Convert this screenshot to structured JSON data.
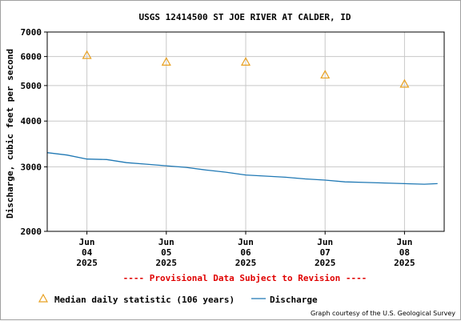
{
  "chart_data": {
    "type": "line",
    "title": "USGS 12414500 ST JOE RIVER AT CALDER, ID",
    "ylabel": "Discharge, cubic feet per second",
    "y_scale": "log",
    "ylim": [
      2000,
      7000
    ],
    "y_ticks": [
      "2000",
      "3000",
      "4000",
      "5000",
      "6000",
      "7000"
    ],
    "y_tick_values": [
      2000,
      3000,
      4000,
      5000,
      6000,
      7000
    ],
    "xlim": [
      "2025-06-03T12:00",
      "2025-06-08T12:00"
    ],
    "x_ticks": [
      {
        "date": "2025-06-04",
        "month": "Jun",
        "day": "04",
        "year": "2025"
      },
      {
        "date": "2025-06-05",
        "month": "Jun",
        "day": "05",
        "year": "2025"
      },
      {
        "date": "2025-06-06",
        "month": "Jun",
        "day": "06",
        "year": "2025"
      },
      {
        "date": "2025-06-07",
        "month": "Jun",
        "day": "07",
        "year": "2025"
      },
      {
        "date": "2025-06-08",
        "month": "Jun",
        "day": "08",
        "year": "2025"
      }
    ],
    "grid": true,
    "provisional_note": "---- Provisional Data Subject to Revision ----",
    "credit": "Graph courtesy of the U.S. Geological Survey",
    "series": [
      {
        "name": "Discharge",
        "kind": "line",
        "color": "#1f78b4",
        "points": [
          [
            "2025-06-03T12:00",
            3280
          ],
          [
            "2025-06-03T18:00",
            3230
          ],
          [
            "2025-06-04T00:00",
            3150
          ],
          [
            "2025-06-04T06:00",
            3140
          ],
          [
            "2025-06-04T12:00",
            3080
          ],
          [
            "2025-06-04T18:00",
            3050
          ],
          [
            "2025-06-05T00:00",
            3020
          ],
          [
            "2025-06-05T06:00",
            2990
          ],
          [
            "2025-06-05T12:00",
            2940
          ],
          [
            "2025-06-05T18:00",
            2900
          ],
          [
            "2025-06-06T00:00",
            2850
          ],
          [
            "2025-06-06T06:00",
            2830
          ],
          [
            "2025-06-06T12:00",
            2810
          ],
          [
            "2025-06-06T18:00",
            2780
          ],
          [
            "2025-06-07T00:00",
            2760
          ],
          [
            "2025-06-07T06:00",
            2730
          ],
          [
            "2025-06-07T12:00",
            2720
          ],
          [
            "2025-06-07T18:00",
            2710
          ],
          [
            "2025-06-08T00:00",
            2700
          ],
          [
            "2025-06-08T06:00",
            2690
          ],
          [
            "2025-06-08T10:00",
            2700
          ]
        ]
      },
      {
        "name": "Median daily statistic (106 years)",
        "kind": "marker",
        "marker": "triangle",
        "color": "#e8a020",
        "points": [
          [
            "2025-06-04T00:00",
            6050
          ],
          [
            "2025-06-05T00:00",
            5800
          ],
          [
            "2025-06-06T00:00",
            5800
          ],
          [
            "2025-06-07T00:00",
            5350
          ],
          [
            "2025-06-08T00:00",
            5050
          ]
        ]
      }
    ],
    "legend": [
      {
        "label": "Median daily statistic (106 years)",
        "symbol": "triangle",
        "color": "#e8a020"
      },
      {
        "label": "Discharge",
        "symbol": "line",
        "color": "#1f78b4"
      }
    ]
  }
}
